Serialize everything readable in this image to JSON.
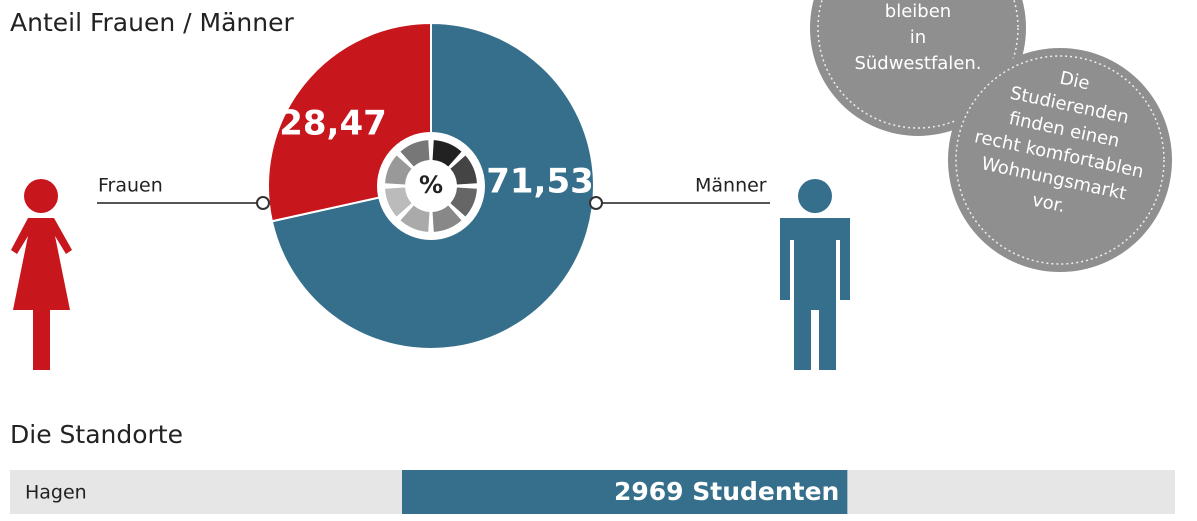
{
  "chart_data": [
    {
      "type": "pie",
      "title": "Anteil Frauen / Männer",
      "categories": [
        "Frauen",
        "Männer"
      ],
      "values": [
        28.47,
        71.53
      ],
      "value_labels": [
        "28,47",
        "71,53"
      ],
      "colors": [
        "#c8161d",
        "#356f8b"
      ],
      "center_label": "%"
    },
    {
      "type": "bar",
      "title": "Die Standorte",
      "categories": [
        "Hagen"
      ],
      "values": [
        2969
      ],
      "value_labels": [
        "2969 Studenten"
      ],
      "color": "#356f8b"
    }
  ],
  "bubbles": [
    {
      "lines": [
        "bleiben",
        "in",
        "Südwestfalen."
      ]
    },
    {
      "lines": [
        "Die",
        "Studierenden",
        "finden einen",
        "recht komfortablen",
        "Wohnungsmarkt",
        "vor."
      ]
    }
  ]
}
